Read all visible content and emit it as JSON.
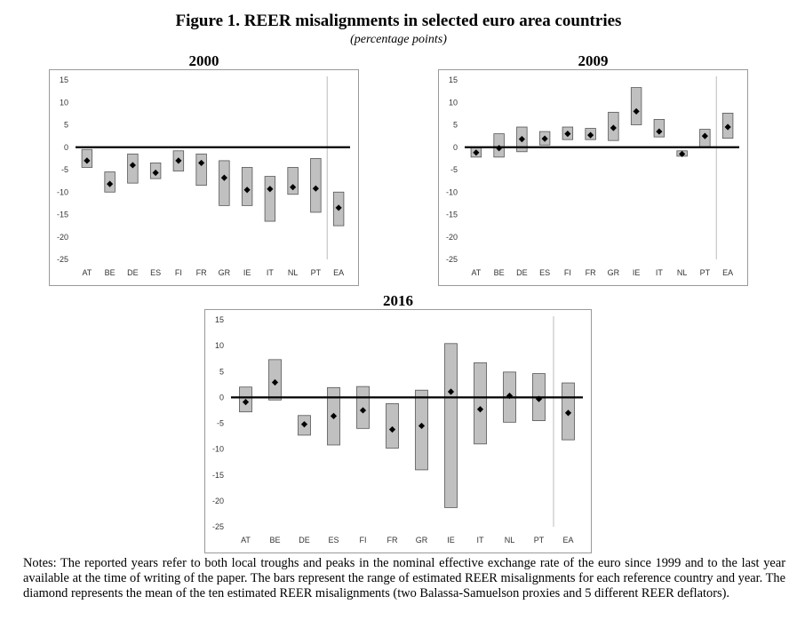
{
  "title": "Figure 1. REER misalignments in selected euro area countries",
  "subtitle": "(percentage points)",
  "notes": "Notes: The reported years refer to both local troughs and peaks in the nominal effective exchange rate of the euro since 1999 and to the last year available at the time of writing of the paper. The bars represent the range of estimated REER misalignments for each reference country and year. The diamond represents the mean of the ten estimated REER misalignments (two Balassa-Samuelson proxies and 5 different REER deflators).",
  "colors": {
    "bar_fill": "#c0c0c0",
    "bar_stroke": "#555555",
    "zero_line": "#000000",
    "grid_border": "#999999",
    "separator": "#bbbbbb"
  },
  "chart_data": [
    {
      "type": "bar",
      "title": "2000",
      "categories": [
        "AT",
        "BE",
        "DE",
        "ES",
        "FI",
        "FR",
        "GR",
        "IE",
        "IT",
        "NL",
        "PT",
        "EA"
      ],
      "ylim": [
        -25,
        15
      ],
      "yticks": [
        15,
        10,
        5,
        0,
        -5,
        -10,
        -15,
        -20,
        -25
      ],
      "series": [
        {
          "name": "range_low",
          "values": [
            -4.5,
            -10,
            -8,
            -7,
            -5.3,
            -8.5,
            -13,
            -13,
            -16.5,
            -10.5,
            -14.5,
            -17.5
          ]
        },
        {
          "name": "range_high",
          "values": [
            -0.5,
            -5.5,
            -1.5,
            -3.5,
            -0.8,
            -1.5,
            -3,
            -4.5,
            -6.5,
            -4.5,
            -2.5,
            -10
          ]
        },
        {
          "name": "mean",
          "values": [
            -3,
            -8.2,
            -4,
            -5.7,
            -3,
            -3.5,
            -6.8,
            -9.5,
            -9.3,
            -8.9,
            -9.2,
            -13.5
          ]
        }
      ]
    },
    {
      "type": "bar",
      "title": "2009",
      "categories": [
        "AT",
        "BE",
        "DE",
        "ES",
        "FI",
        "FR",
        "GR",
        "IE",
        "IT",
        "NL",
        "PT",
        "EA"
      ],
      "ylim": [
        -25,
        15
      ],
      "yticks": [
        15,
        10,
        5,
        0,
        -5,
        -10,
        -15,
        -20,
        -25
      ],
      "series": [
        {
          "name": "range_low",
          "values": [
            -2.2,
            -2.2,
            -1,
            0.5,
            1.7,
            1.7,
            1.5,
            5,
            2.3,
            -2,
            0,
            2
          ]
        },
        {
          "name": "range_high",
          "values": [
            0,
            3,
            4.5,
            3.5,
            4.5,
            4.2,
            7.8,
            13.3,
            6.2,
            -0.8,
            4,
            7.6
          ]
        },
        {
          "name": "mean",
          "values": [
            -1.2,
            -0.2,
            1.8,
            1.9,
            3,
            2.7,
            4.3,
            8,
            3.5,
            -1.5,
            2.5,
            4.5
          ]
        }
      ]
    },
    {
      "type": "bar",
      "title": "2016",
      "categories": [
        "AT",
        "BE",
        "DE",
        "ES",
        "FI",
        "FR",
        "GR",
        "IE",
        "IT",
        "NL",
        "PT",
        "EA"
      ],
      "ylim": [
        -25,
        15
      ],
      "yticks": [
        15,
        10,
        5,
        0,
        -5,
        -10,
        -15,
        -20,
        -25
      ],
      "series": [
        {
          "name": "range_low",
          "values": [
            -2.8,
            -0.5,
            -7.3,
            -9.2,
            -6,
            -9.8,
            -14,
            -21.3,
            -9,
            -4.8,
            -4.5,
            -8.2
          ]
        },
        {
          "name": "range_high",
          "values": [
            2,
            7.3,
            -3.5,
            1.9,
            2.1,
            -1.2,
            1.4,
            10.4,
            6.7,
            4.9,
            4.6,
            2.8
          ]
        },
        {
          "name": "mean",
          "values": [
            -0.9,
            2.9,
            -5.2,
            -3.6,
            -2.5,
            -6.2,
            -5.5,
            1.1,
            -2.3,
            0.3,
            -0.3,
            -3
          ]
        }
      ]
    }
  ]
}
